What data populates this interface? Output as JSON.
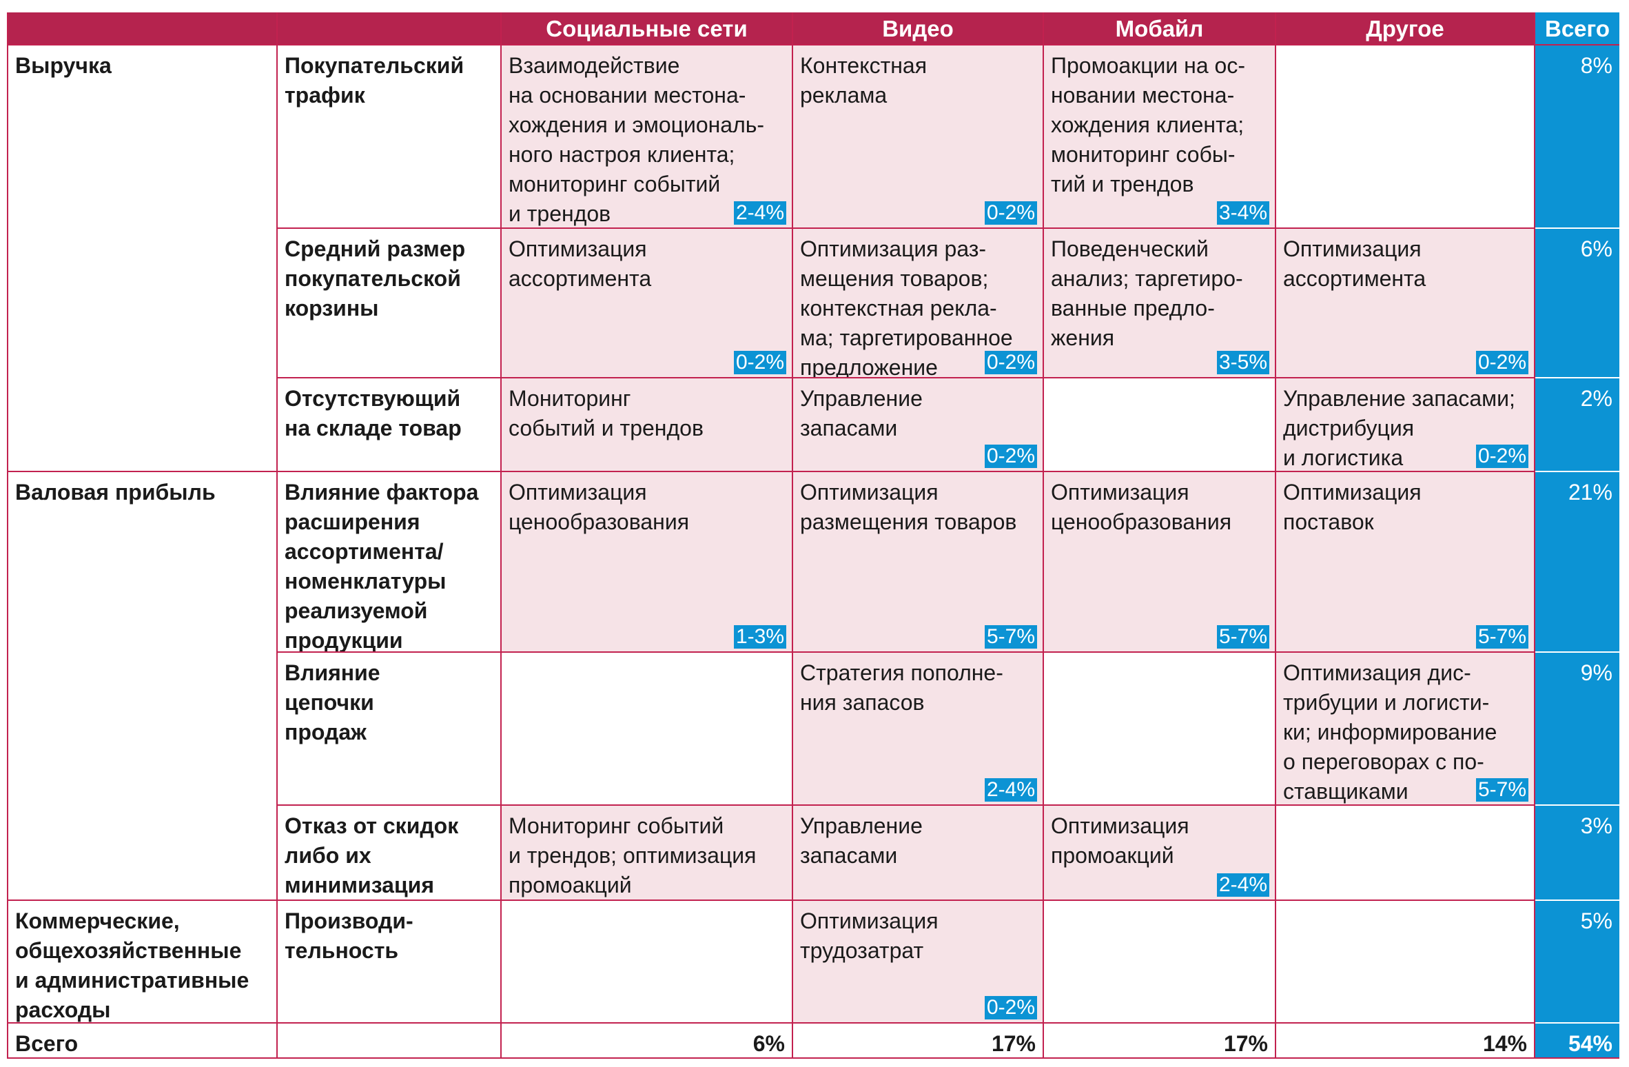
{
  "header": {
    "col1": "",
    "col2": "",
    "social": "Социальные сети",
    "video": "Видео",
    "mobile": "Мобайл",
    "other": "Другое",
    "total": "Всего"
  },
  "rows": [
    {
      "category": "Выручка",
      "factor": "Покупательский\nтрафик",
      "social": {
        "text": "Взаимодействие\nна основании местона-\nхождения и эмоциональ-\nного настроя клиента;\nмониторинг событий\nи трендов",
        "range": "2-4%"
      },
      "video": {
        "text": "Контекстная\nреклама",
        "range": "0-2%"
      },
      "mobile": {
        "text": "Промоакции на ос-\nновании местона-\nхождения клиента;\nмониторинг собы-\nтий и трендов",
        "range": "3-4%"
      },
      "other": {
        "text": "",
        "range": ""
      },
      "total": "8%"
    },
    {
      "category": "",
      "factor": "Средний размер\nпокупательской\nкорзины",
      "social": {
        "text": "Оптимизация\nассортимента",
        "range": "0-2%"
      },
      "video": {
        "text": "Оптимизация раз-\nмещения товаров;\nконтекстная рекла-\nма; таргетированное\nпредложение",
        "range": "0-2%"
      },
      "mobile": {
        "text": "Поведенческий\nанализ; таргетиро-\nванные предло-\nжения",
        "range": "3-5%"
      },
      "other": {
        "text": "Оптимизация\nассортимента",
        "range": "0-2%"
      },
      "total": "6%"
    },
    {
      "category": "",
      "factor": "Отсутствующий\nна складе товар",
      "social": {
        "text": "Мониторинг\nсобытий и трендов",
        "range": ""
      },
      "video": {
        "text": "Управление\nзапасами",
        "range": "0-2%"
      },
      "mobile": {
        "text": "",
        "range": ""
      },
      "other": {
        "text": "Управление запасами;\nдистрибуция\nи логистика",
        "range": "0-2%"
      },
      "total": "2%"
    },
    {
      "category": "Валовая прибыль",
      "factor": "Влияние фактора\nрасширения\nассортимента/\nноменклатуры\nреализуемой\nпродукции",
      "social": {
        "text": "Оптимизация\nценообразования",
        "range": "1-3%"
      },
      "video": {
        "text": "Оптимизация\nразмещения товаров",
        "range": "5-7%"
      },
      "mobile": {
        "text": "Оптимизация\nценообразования",
        "range": "5-7%"
      },
      "other": {
        "text": "Оптимизация\nпоставок",
        "range": "5-7%"
      },
      "total": "21%"
    },
    {
      "category": "",
      "factor": "Влияние\nцепочки\nпродаж",
      "social": {
        "text": "",
        "range": ""
      },
      "video": {
        "text": "Стратегия пополне-\nния запасов",
        "range": "2-4%"
      },
      "mobile": {
        "text": "",
        "range": ""
      },
      "other": {
        "text": "Оптимизация дис-\nтрибуции и логисти-\nки; информирование\nо переговорах с по-\nставщиками",
        "range": "5-7%"
      },
      "total": "9%"
    },
    {
      "category": "",
      "factor": "Отказ от скидок\nлибо их\nминимизация",
      "social": {
        "text": "Мониторинг событий\nи трендов; оптимизация\nпромоакций",
        "range": ""
      },
      "video": {
        "text": "Управление\nзапасами",
        "range": ""
      },
      "mobile": {
        "text": "Оптимизация\nпромоакций",
        "range": "2-4%"
      },
      "other": {
        "text": "",
        "range": ""
      },
      "total": "3%"
    },
    {
      "category": "Коммерческие,\nобщехозяйственные\nи административные\nрасходы",
      "factor": "Производи-\nтельность",
      "social": {
        "text": "",
        "range": ""
      },
      "video": {
        "text": "Оптимизация\nтрудозатрат",
        "range": "0-2%"
      },
      "mobile": {
        "text": "",
        "range": ""
      },
      "other": {
        "text": "",
        "range": ""
      },
      "total": "5%"
    }
  ],
  "summary": {
    "label": "Всего",
    "factor": "",
    "social": "6%",
    "video": "17%",
    "mobile": "17%",
    "other": "14%",
    "total": "54%"
  },
  "colors": {
    "header_bg": "#b5234e",
    "grid_line": "#c2214f",
    "highlight_bg": "#f6e3e7",
    "total_bg": "#0c93d4"
  }
}
